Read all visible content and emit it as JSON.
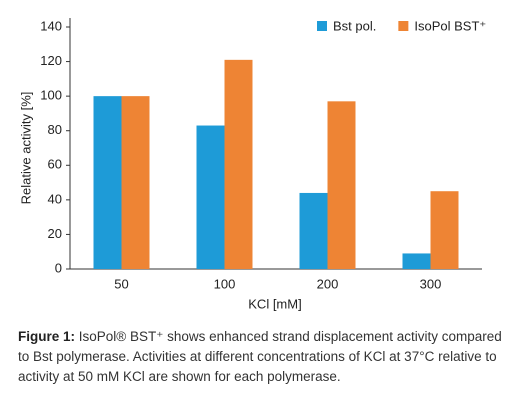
{
  "chart_data": {
    "type": "bar",
    "x_label": "KCl [mM]",
    "y_label": "Relative activity [%]",
    "categories": [
      "50",
      "100",
      "200",
      "300"
    ],
    "series": [
      {
        "name": "Bst pol.",
        "color": "#1e9bd7",
        "values": [
          100,
          83,
          44,
          9
        ]
      },
      {
        "name": "IsoPol BST⁺",
        "color": "#ee8434",
        "values": [
          100,
          121,
          97,
          45
        ]
      }
    ],
    "ylim": [
      0,
      140
    ],
    "yticks": [
      0,
      20,
      40,
      60,
      80,
      100,
      120,
      140
    ],
    "grid": false,
    "legend": "upper right"
  },
  "caption": {
    "label": "Figure 1:",
    "text": "IsoPol® BST⁺ shows enhanced strand displacement activity compared to Bst polymerase. Activities at different concentrations of KCl at 37°C relative to activity at 50 mM KCl are shown for each polymerase."
  }
}
